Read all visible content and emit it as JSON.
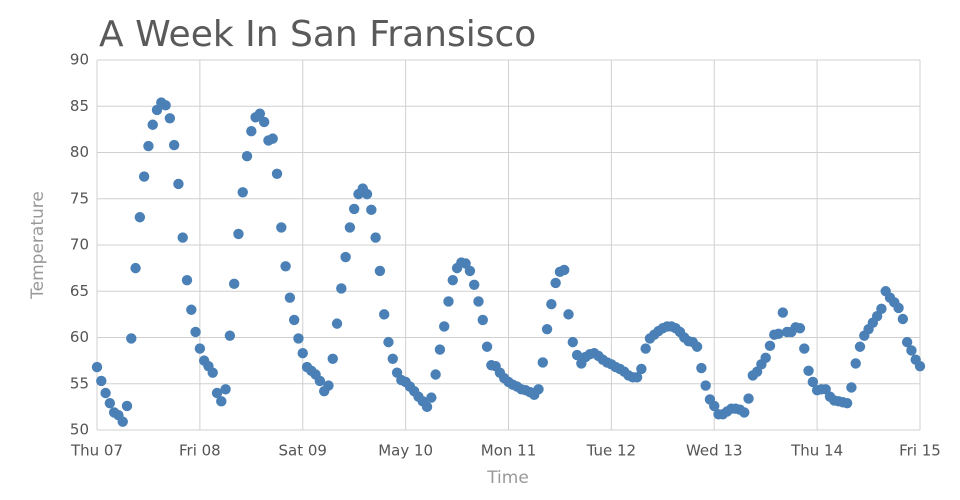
{
  "chart_data": {
    "type": "scatter",
    "title": "A Week In San Fransisco",
    "x_label": "Time",
    "y_label": "Temperature",
    "series": [
      {
        "name": "Temperature",
        "color": "#4a80b6",
        "x": [
          0,
          1,
          2,
          3,
          4,
          5,
          6,
          7,
          8,
          9,
          10,
          11,
          12,
          13,
          14,
          15,
          16,
          17,
          18,
          19,
          20,
          21,
          22,
          23,
          24,
          25,
          26,
          27,
          28,
          29,
          30,
          31,
          32,
          33,
          34,
          35,
          36,
          37,
          38,
          39,
          40,
          41,
          42,
          43,
          44,
          45,
          46,
          47,
          48,
          49,
          50,
          51,
          52,
          53,
          54,
          55,
          56,
          57,
          58,
          59,
          60,
          61,
          62,
          63,
          64,
          65,
          66,
          67,
          68,
          69,
          70,
          71,
          72,
          73,
          74,
          75,
          76,
          77,
          78,
          79,
          80,
          81,
          82,
          83,
          84,
          85,
          86,
          87,
          88,
          89,
          90,
          91,
          92,
          93,
          94,
          95,
          96,
          97,
          98,
          99,
          100,
          101,
          102,
          103,
          104,
          105,
          106,
          107,
          108,
          109,
          110,
          111,
          112,
          113,
          114,
          115,
          116,
          117,
          118,
          119,
          120,
          121,
          122,
          123,
          124,
          125,
          126,
          127,
          128,
          129,
          130,
          131,
          132,
          133,
          134,
          135,
          136,
          137,
          138,
          139,
          140,
          141,
          142,
          143,
          144,
          145,
          146,
          147,
          148,
          149,
          150,
          151,
          152,
          153,
          154,
          155,
          156,
          157,
          158,
          159,
          160,
          161,
          162,
          163,
          164,
          165,
          166,
          167,
          168,
          169,
          170,
          171,
          172,
          173,
          174,
          175,
          176,
          177,
          178,
          179,
          180,
          181,
          182,
          183,
          184,
          185,
          186,
          187,
          188,
          189,
          190,
          191,
          192
        ],
        "values": [
          56.8,
          55.3,
          54.0,
          52.9,
          51.9,
          51.6,
          50.9,
          52.6,
          59.9,
          67.5,
          73.0,
          77.4,
          80.7,
          83.0,
          84.6,
          85.4,
          85.1,
          83.7,
          80.8,
          76.6,
          70.8,
          66.2,
          63.0,
          60.6,
          58.8,
          57.5,
          56.9,
          56.2,
          54.0,
          53.1,
          54.4,
          60.2,
          65.8,
          71.2,
          75.7,
          79.6,
          82.3,
          83.8,
          84.2,
          83.3,
          81.3,
          81.5,
          77.7,
          71.9,
          67.7,
          64.3,
          61.9,
          59.9,
          58.3,
          56.8,
          56.4,
          56.0,
          55.3,
          54.2,
          54.8,
          57.7,
          61.5,
          65.3,
          68.7,
          71.9,
          73.9,
          75.5,
          76.1,
          75.5,
          73.8,
          70.8,
          67.2,
          62.5,
          59.5,
          57.7,
          56.2,
          55.4,
          55.2,
          54.7,
          54.2,
          53.6,
          53.1,
          52.5,
          53.5,
          56.0,
          58.7,
          61.2,
          63.9,
          66.2,
          67.5,
          68.1,
          68.0,
          67.2,
          65.7,
          63.9,
          61.9,
          59.0,
          57.0,
          56.9,
          56.2,
          55.6,
          55.2,
          54.9,
          54.7,
          54.4,
          54.3,
          54.1,
          53.8,
          54.4,
          57.3,
          60.9,
          63.6,
          65.9,
          67.1,
          67.3,
          62.5,
          59.5,
          58.1,
          57.2,
          57.9,
          58.2,
          58.3,
          58.0,
          57.6,
          57.3,
          57.1,
          56.8,
          56.6,
          56.3,
          55.9,
          55.7,
          55.7,
          56.6,
          58.8,
          59.9,
          60.3,
          60.7,
          61.0,
          61.2,
          61.2,
          61.0,
          60.6,
          60.0,
          59.6,
          59.5,
          59.0,
          56.7,
          54.8,
          53.3,
          52.6,
          51.7,
          51.7,
          52.0,
          52.3,
          52.3,
          52.2,
          51.9,
          53.4,
          55.9,
          56.3,
          57.1,
          57.8,
          59.1,
          60.3,
          60.4,
          62.7,
          60.6,
          60.6,
          61.1,
          61.0,
          58.8,
          56.4,
          55.2,
          54.3,
          54.4,
          54.4,
          53.6,
          53.2,
          53.1,
          53.0,
          52.9,
          54.6,
          57.2,
          59.0,
          60.2,
          60.9,
          61.6,
          62.3,
          63.1,
          65.0,
          64.3,
          63.8,
          63.2,
          62.0,
          59.5,
          58.6,
          57.6,
          56.9
        ]
      }
    ],
    "xlim": [
      0,
      192
    ],
    "xticks": [
      {
        "value": 0,
        "label": "Thu 07"
      },
      {
        "value": 24,
        "label": "Fri 08"
      },
      {
        "value": 48,
        "label": "Sat 09"
      },
      {
        "value": 72,
        "label": "May 10"
      },
      {
        "value": 96,
        "label": "Mon 11"
      },
      {
        "value": 120,
        "label": "Tue 12"
      },
      {
        "value": 144,
        "label": "Wed 13"
      },
      {
        "value": 168,
        "label": "Thu 14"
      },
      {
        "value": 192,
        "label": "Fri 15"
      }
    ],
    "ylim": [
      50,
      90
    ],
    "yticks": [
      50,
      55,
      60,
      65,
      70,
      75,
      80,
      85,
      90
    ],
    "grid": true
  }
}
